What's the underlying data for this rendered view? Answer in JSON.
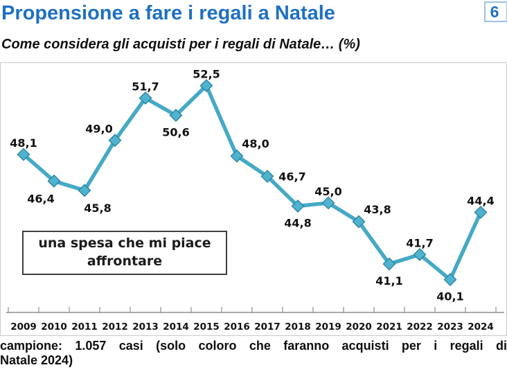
{
  "page": {
    "title": "Propensione a fare i regali a Natale",
    "page_number": "6",
    "subtitle": "Come considera gli acquisti per i regali di Natale… (%)",
    "footer_line1": "campione: 1.057 casi (solo coloro che faranno acquisti per i regali di",
    "footer_line2": "Natale 2024)"
  },
  "annotation_box": {
    "text": "una spesa che mi piace affrontare"
  },
  "colors": {
    "title_blue": "#1F70C1",
    "badge_border": "#9CC2E5",
    "line_teal": "#45A9C6",
    "marker_fill": "#4FB3CF",
    "marker_stroke": "#2E85A0",
    "chart_border": "#C9C9C9",
    "axis_gray": "#8E8E8E",
    "label_color": "#111111"
  },
  "chart_data": {
    "type": "line",
    "title": "Propensione a fare i regali a Natale",
    "subtitle": "Come considera gli acquisti per i regali di Natale… (%)",
    "categories": [
      "2009",
      "2010",
      "2011",
      "2012",
      "2013",
      "2014",
      "2015",
      "2016",
      "2017",
      "2018",
      "2019",
      "2020",
      "2021",
      "2022",
      "2023",
      "2024"
    ],
    "series": [
      {
        "name": "una spesa che mi piace affrontare",
        "values": [
          48.1,
          46.4,
          45.8,
          49.0,
          51.7,
          50.6,
          52.5,
          48.0,
          46.7,
          44.8,
          45.0,
          43.8,
          41.1,
          41.7,
          40.1,
          44.4
        ]
      }
    ],
    "value_labels": [
      "48,1",
      "46,4",
      "45,8",
      "49,0",
      "51,7",
      "50,6",
      "52,5",
      "48,0",
      "46,7",
      "44,8",
      "45,0",
      "43,8",
      "41,1",
      "41,7",
      "40,1",
      "44,4"
    ],
    "label_positions": [
      "above",
      "below-left",
      "below-right",
      "above-left",
      "above",
      "below",
      "above",
      "above-right",
      "right",
      "below",
      "above",
      "above-right",
      "below",
      "above",
      "below",
      "above"
    ],
    "xlabel": "",
    "ylabel": "",
    "unit": "%",
    "ylim": [
      38,
      54
    ],
    "grid": false,
    "y_axis_visible": false,
    "legend_position": "none",
    "marker": "diamond"
  }
}
